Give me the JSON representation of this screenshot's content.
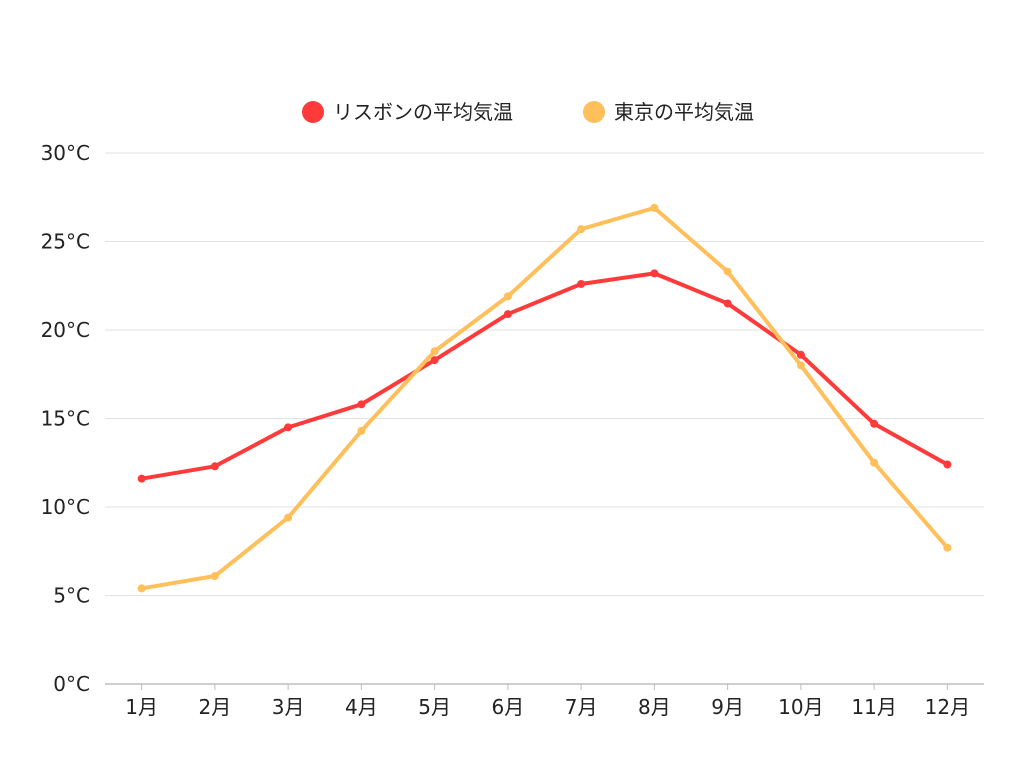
{
  "chart_data": {
    "type": "line",
    "title": "",
    "xlabel": "",
    "ylabel": "",
    "categories": [
      "1月",
      "2月",
      "3月",
      "4月",
      "5月",
      "6月",
      "7月",
      "8月",
      "9月",
      "10月",
      "11月",
      "12月"
    ],
    "ylim": [
      0,
      30
    ],
    "y_ticks": [
      0,
      5,
      10,
      15,
      20,
      25,
      30
    ],
    "y_tick_labels": [
      "0°C",
      "5°C",
      "10°C",
      "15°C",
      "20°C",
      "25°C",
      "30°C"
    ],
    "grid": true,
    "legend_position": "top-center",
    "series": [
      {
        "name": "リスボンの平均気温",
        "color": "#ff3a3a",
        "values": [
          11.6,
          12.3,
          14.5,
          15.8,
          18.3,
          20.9,
          22.6,
          23.2,
          21.5,
          18.6,
          14.7,
          12.4
        ]
      },
      {
        "name": "東京の平均気温",
        "color": "#ffbf5a",
        "values": [
          5.4,
          6.1,
          9.4,
          14.3,
          18.8,
          21.9,
          25.7,
          26.9,
          23.3,
          18.0,
          12.5,
          7.7
        ]
      }
    ]
  }
}
